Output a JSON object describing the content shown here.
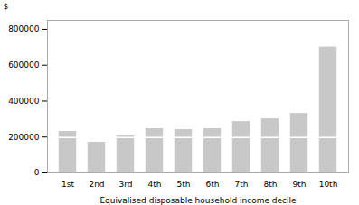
{
  "chart_data": {
    "type": "bar",
    "stacked": true,
    "categories": [
      "1st",
      "2nd",
      "3rd",
      "4th",
      "5th",
      "6th",
      "7th",
      "8th",
      "9th",
      "10th"
    ],
    "series": [
      {
        "color": "#c8c8c8",
        "values": [
          195000,
          175000,
          195000,
          195000,
          195000,
          195000,
          195000,
          195000,
          195000,
          195000
        ]
      },
      {
        "color": "#c8c8c8",
        "values": [
          40000,
          5000,
          15000,
          55000,
          50000,
          55000,
          95000,
          110000,
          140000,
          510000
        ]
      }
    ],
    "xlabel": "Equivalised disposable household income decile",
    "ylabel": "$",
    "ylim": [
      0,
      850000
    ],
    "yticks": [
      0,
      200000,
      400000,
      600000,
      800000
    ],
    "grid": false
  }
}
